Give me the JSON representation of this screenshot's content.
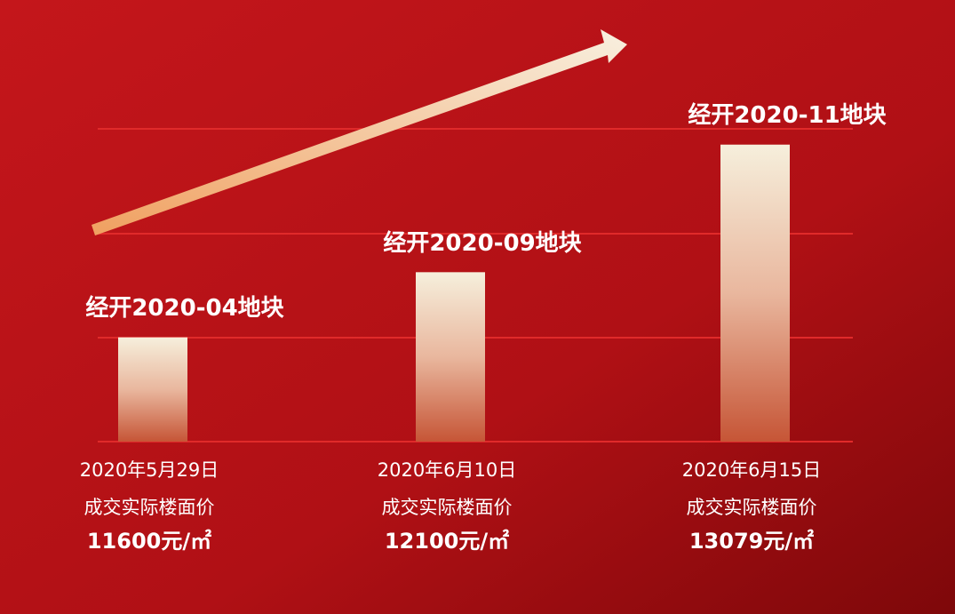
{
  "chart_data": {
    "type": "bar",
    "categories": [
      "经开2020-04地块",
      "经开2020-09地块",
      "经开2020-11地块"
    ],
    "dates": [
      "2020年5月29日",
      "2020年6月10日",
      "2020年6月15日"
    ],
    "value_caption": "成交实际楼面价",
    "values": [
      11600,
      12100,
      13079
    ],
    "value_labels": [
      "11600元/㎡",
      "12100元/㎡",
      "13079元/㎡"
    ],
    "ylim": [
      10800,
      13200
    ]
  }
}
